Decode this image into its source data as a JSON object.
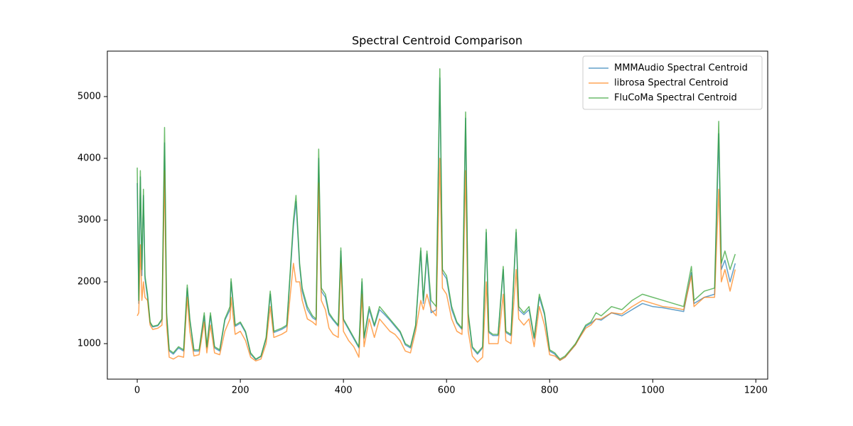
{
  "chart_data": {
    "type": "line",
    "title": "Spectral Centroid Comparison",
    "x": [
      0,
      3,
      6,
      9,
      12,
      15,
      20,
      25,
      30,
      40,
      48,
      53,
      57,
      62,
      70,
      80,
      90,
      97,
      102,
      110,
      120,
      130,
      135,
      142,
      150,
      160,
      170,
      180,
      182,
      190,
      200,
      210,
      220,
      230,
      240,
      250,
      258,
      265,
      280,
      290,
      297,
      303,
      308,
      315,
      320,
      330,
      340,
      347,
      352,
      357,
      365,
      372,
      380,
      390,
      395,
      400,
      410,
      420,
      430,
      436,
      440,
      450,
      460,
      470,
      480,
      490,
      500,
      510,
      520,
      530,
      540,
      550,
      555,
      562,
      570,
      580,
      587,
      592,
      600,
      610,
      620,
      630,
      637,
      642,
      650,
      660,
      670,
      677,
      682,
      690,
      700,
      710,
      715,
      725,
      735,
      740,
      750,
      760,
      770,
      780,
      790,
      800,
      810,
      820,
      830,
      840,
      850,
      860,
      870,
      880,
      890,
      900,
      920,
      940,
      960,
      980,
      1000,
      1020,
      1040,
      1060,
      1075,
      1080,
      1100,
      1120,
      1128,
      1133,
      1140,
      1150,
      1160
    ],
    "series": [
      {
        "name": "MMMAudio Spectral Centroid",
        "color": "#1f77b4",
        "values": [
          3600,
          1650,
          3700,
          2100,
          3400,
          2050,
          1750,
          1330,
          1270,
          1290,
          1380,
          4250,
          1450,
          880,
          830,
          930,
          880,
          1900,
          1380,
          880,
          880,
          1450,
          930,
          1450,
          930,
          880,
          1380,
          1550,
          2000,
          1280,
          1330,
          1180,
          830,
          740,
          790,
          1080,
          1800,
          1180,
          1230,
          1280,
          2150,
          2900,
          3300,
          2250,
          1850,
          1550,
          1420,
          1380,
          4000,
          1850,
          1750,
          1470,
          1380,
          1280,
          2500,
          1380,
          1230,
          1080,
          930,
          2000,
          1080,
          1550,
          1280,
          1550,
          1470,
          1380,
          1280,
          1180,
          980,
          930,
          1280,
          2500,
          1650,
          2450,
          1500,
          1550,
          5300,
          2150,
          2050,
          1550,
          1330,
          1230,
          4650,
          1450,
          930,
          830,
          930,
          2800,
          1180,
          1130,
          1130,
          2200,
          1180,
          1130,
          2800,
          1550,
          1470,
          1550,
          1080,
          1750,
          1470,
          880,
          830,
          730,
          780,
          880,
          980,
          1130,
          1280,
          1330,
          1400,
          1380,
          1500,
          1450,
          1550,
          1650,
          1600,
          1580,
          1550,
          1520,
          2150,
          1650,
          1750,
          1800,
          4400,
          2200,
          2350,
          2000,
          2300
        ]
      },
      {
        "name": "librosa Spectral Centroid",
        "color": "#ff7f0e",
        "values": [
          1450,
          1500,
          2600,
          1700,
          2000,
          1750,
          1700,
          1300,
          1230,
          1250,
          1300,
          3800,
          1300,
          780,
          750,
          800,
          780,
          1750,
          1200,
          800,
          820,
          1350,
          850,
          1300,
          850,
          820,
          1200,
          1400,
          1750,
          1150,
          1200,
          1050,
          780,
          720,
          750,
          1000,
          1600,
          1100,
          1150,
          1200,
          1800,
          2300,
          2000,
          2000,
          1700,
          1400,
          1350,
          1300,
          3600,
          1700,
          1550,
          1250,
          1150,
          1100,
          2300,
          1200,
          1050,
          950,
          780,
          1800,
          950,
          1400,
          1100,
          1400,
          1300,
          1200,
          1150,
          1050,
          880,
          850,
          1200,
          1700,
          1550,
          1800,
          1550,
          1450,
          4000,
          1900,
          1800,
          1400,
          1200,
          1150,
          3800,
          1200,
          800,
          700,
          780,
          2000,
          1000,
          1000,
          1000,
          1800,
          1050,
          1000,
          2200,
          1400,
          1300,
          1400,
          950,
          1600,
          1300,
          820,
          800,
          730,
          780,
          880,
          980,
          1120,
          1250,
          1300,
          1400,
          1400,
          1500,
          1480,
          1600,
          1700,
          1650,
          1600,
          1580,
          1550,
          2100,
          1600,
          1750,
          1750,
          3500,
          2000,
          2200,
          1850,
          2200
        ]
      },
      {
        "name": "FluCoMa Spectral Centroid",
        "color": "#2ca02c",
        "values": [
          3850,
          1700,
          3800,
          2200,
          3500,
          2100,
          1800,
          1350,
          1280,
          1300,
          1400,
          4500,
          1500,
          900,
          850,
          950,
          900,
          1950,
          1400,
          900,
          900,
          1500,
          950,
          1500,
          950,
          900,
          1400,
          1600,
          2050,
          1300,
          1350,
          1200,
          850,
          750,
          800,
          1100,
          1850,
          1200,
          1250,
          1300,
          2200,
          3000,
          3400,
          2300,
          1900,
          1600,
          1450,
          1400,
          4150,
          1900,
          1800,
          1500,
          1400,
          1300,
          2550,
          1400,
          1250,
          1100,
          950,
          2050,
          1100,
          1600,
          1300,
          1600,
          1500,
          1400,
          1300,
          1200,
          1000,
          950,
          1300,
          2550,
          1700,
          2500,
          1700,
          1600,
          5450,
          2200,
          2100,
          1600,
          1350,
          1250,
          4750,
          1500,
          950,
          850,
          950,
          2850,
          1200,
          1150,
          1150,
          2250,
          1200,
          1150,
          2850,
          1600,
          1500,
          1600,
          1100,
          1800,
          1500,
          900,
          850,
          750,
          800,
          900,
          1000,
          1150,
          1300,
          1350,
          1500,
          1450,
          1600,
          1550,
          1700,
          1800,
          1750,
          1700,
          1650,
          1600,
          2250,
          1700,
          1850,
          1900,
          4600,
          2300,
          2500,
          2200,
          2450
        ]
      }
    ],
    "xlim": [
      -58,
      1223
    ],
    "ylim": [
      425,
      5736
    ],
    "xticks": [
      0,
      200,
      400,
      600,
      800,
      1000,
      1200
    ],
    "yticks": [
      1000,
      2000,
      3000,
      4000,
      5000
    ],
    "grid": false,
    "legend": "upper right"
  }
}
